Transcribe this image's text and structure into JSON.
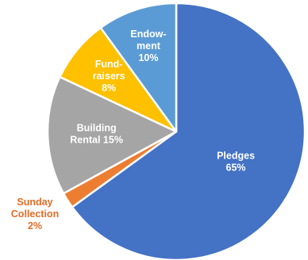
{
  "chart_data": {
    "type": "pie",
    "start_angle_deg": 0,
    "direction": "clockwise",
    "slices": [
      {
        "label_lines": [
          "Pledges",
          "65%"
        ],
        "value": 65,
        "color": "#4472C4",
        "label_color": "#ffffff",
        "label_placement": "inside"
      },
      {
        "label_lines": [
          "Sunday",
          "Collection",
          "2%"
        ],
        "value": 2,
        "color": "#ED7D31",
        "label_color": "#E46C24",
        "label_placement": "outside"
      },
      {
        "label_lines": [
          "Building",
          "Rental 15%"
        ],
        "value": 15,
        "color": "#A5A5A5",
        "label_color": "#ffffff",
        "label_placement": "inside"
      },
      {
        "label_lines": [
          "Fund-",
          "raisers",
          "8%"
        ],
        "value": 8,
        "color": "#FFC000",
        "label_color": "#ffffff",
        "label_placement": "inside"
      },
      {
        "label_lines": [
          "Endow-",
          "ment",
          "10%"
        ],
        "value": 10,
        "color": "#5B9BD5",
        "label_color": "#ffffff",
        "label_placement": "inside"
      }
    ]
  }
}
